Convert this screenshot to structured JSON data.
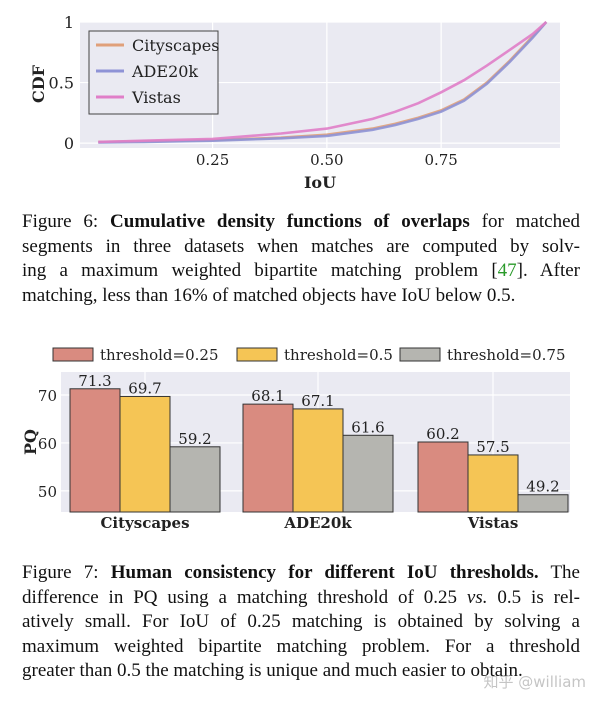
{
  "chart_data": [
    {
      "type": "line",
      "xlabel": "IoU",
      "ylabel": "CDF",
      "xlim": [
        -0.04,
        1.01
      ],
      "ylim": [
        -0.04,
        1.0
      ],
      "xticks": [
        "0.25",
        "0.50",
        "0.75"
      ],
      "xtick_values": [
        0.25,
        0.5,
        0.75
      ],
      "yticks": [
        "0",
        "0.5",
        "1"
      ],
      "ytick_values": [
        0,
        0.5,
        1
      ],
      "grid": true,
      "legend_placement": "top-left",
      "background": "#eaeaf2",
      "series": [
        {
          "name": "Cityscapes",
          "color": "#e0a07a",
          "x": [
            0,
            0.1,
            0.25,
            0.4,
            0.5,
            0.6,
            0.65,
            0.7,
            0.75,
            0.8,
            0.85,
            0.9,
            0.95,
            0.98
          ],
          "y": [
            0.01,
            0.015,
            0.025,
            0.045,
            0.07,
            0.12,
            0.16,
            0.21,
            0.27,
            0.36,
            0.5,
            0.68,
            0.88,
            1.0
          ]
        },
        {
          "name": "ADE20k",
          "color": "#8e93d6",
          "x": [
            0,
            0.1,
            0.25,
            0.4,
            0.5,
            0.6,
            0.65,
            0.7,
            0.75,
            0.8,
            0.85,
            0.9,
            0.95,
            0.98
          ],
          "y": [
            0.005,
            0.01,
            0.02,
            0.04,
            0.06,
            0.11,
            0.15,
            0.2,
            0.26,
            0.35,
            0.49,
            0.67,
            0.87,
            1.0
          ]
        },
        {
          "name": "Vistas",
          "color": "#e07ec8",
          "x": [
            0,
            0.1,
            0.25,
            0.4,
            0.5,
            0.6,
            0.65,
            0.7,
            0.75,
            0.8,
            0.85,
            0.9,
            0.95,
            0.98
          ],
          "y": [
            0.01,
            0.02,
            0.035,
            0.08,
            0.12,
            0.2,
            0.26,
            0.33,
            0.42,
            0.52,
            0.64,
            0.77,
            0.9,
            1.0
          ]
        }
      ]
    },
    {
      "type": "bar",
      "ylabel": "PQ",
      "categories": [
        "Cityscapes",
        "ADE20k",
        "Vistas"
      ],
      "ylim": [
        45.6,
        74.8
      ],
      "yticks": [
        "50",
        "60",
        "70"
      ],
      "ytick_values": [
        50,
        60,
        70
      ],
      "grid": true,
      "legend_placement": "top",
      "background": "#eaeaf2",
      "series": [
        {
          "name": "threshold=0.25",
          "color": "#d98b80",
          "values": [
            71.3,
            68.1,
            60.2
          ],
          "labels": [
            "71.3",
            "68.1",
            "60.2"
          ]
        },
        {
          "name": "threshold=0.5",
          "color": "#f5c555",
          "values": [
            69.7,
            67.1,
            57.5
          ],
          "labels": [
            "69.7",
            "67.1",
            "57.5"
          ]
        },
        {
          "name": "threshold=0.75",
          "color": "#b5b5b0",
          "values": [
            59.2,
            61.6,
            49.2
          ],
          "labels": [
            "59.2",
            "61.6",
            "49.2"
          ]
        }
      ]
    }
  ],
  "fig6": {
    "label": "Figure 6: ",
    "bold": "Cumulative density functions of overlaps",
    "l1": " for matched",
    "l2": "segments in three datasets when matches are computed by solv-",
    "l3a": "ing a maximum weighted bipartite matching problem [",
    "cite": "47",
    "l3b": "].  After",
    "l4": "matching, less than 16% of matched objects have IoU below 0.5."
  },
  "fig7": {
    "label": "Figure 7: ",
    "bold": "Human consistency for different IoU thresholds.",
    "l1": " The",
    "l2a": "difference in PQ using a matching threshold of 0.25 ",
    "vs": "vs.",
    "l2b": " 0.5 is rel-",
    "l3": "atively small.  For IoU of 0.25 matching is obtained by solving a",
    "l4": "maximum weighted bipartite matching problem.  For a threshold",
    "l5": "greater than 0.5 the matching is unique and much easier to obtain."
  },
  "watermark": "知乎 @william"
}
